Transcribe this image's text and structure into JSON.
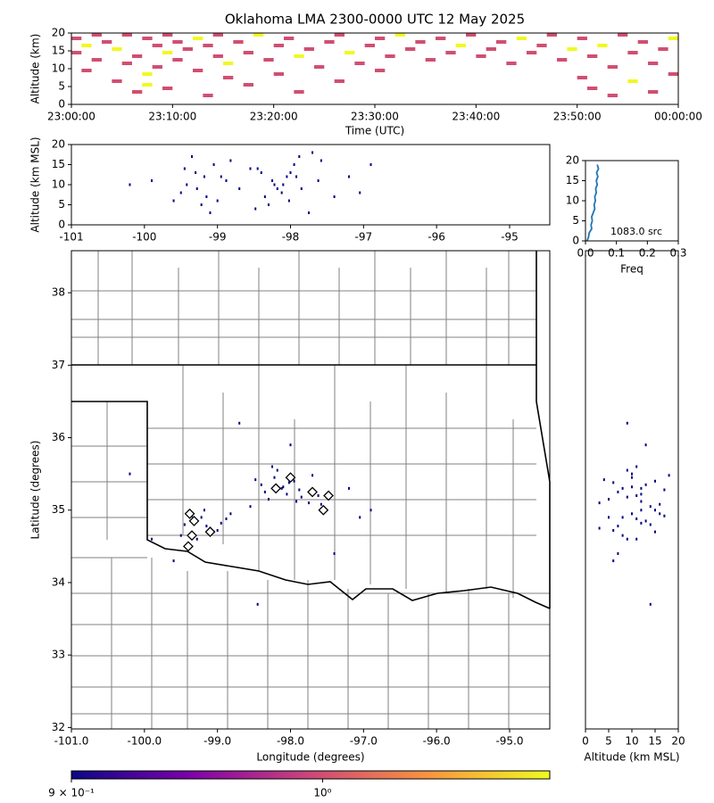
{
  "chart_data": [
    {
      "type": "heatmap",
      "title": "Oklahoma LMA 2300-0000 UTC 12 May 2025",
      "xlabel": "Time (UTC)",
      "ylabel": "Altitude (km)",
      "x": [
        "23:00:00",
        "23:00:00",
        "23:01:00",
        "23:01:00",
        "23:02:00",
        "23:02:00",
        "23:03:00",
        "23:04:00",
        "23:04:00",
        "23:05:00",
        "23:05:00",
        "23:06:00",
        "23:06:00",
        "23:07:00",
        "23:07:00",
        "23:07:00",
        "23:08:00",
        "23:08:00",
        "23:09:00",
        "23:09:00",
        "23:09:00",
        "23:10:00",
        "23:10:00",
        "23:11:00",
        "23:12:00",
        "23:12:00",
        "23:13:00",
        "23:13:00",
        "23:14:00",
        "23:14:00",
        "23:15:00",
        "23:15:00",
        "23:16:00",
        "23:17:00",
        "23:17:00",
        "23:18:00",
        "23:19:00",
        "23:20:00",
        "23:20:00",
        "23:21:00",
        "23:22:00",
        "23:22:00",
        "23:23:00",
        "23:24:00",
        "23:25:00",
        "23:26:00",
        "23:26:00",
        "23:27:00",
        "23:28:00",
        "23:29:00",
        "23:30:00",
        "23:30:00",
        "23:31:00",
        "23:32:00",
        "23:33:00",
        "23:34:00",
        "23:35:00",
        "23:36:00",
        "23:37:00",
        "23:38:00",
        "23:39:00",
        "23:40:00",
        "23:41:00",
        "23:42:00",
        "23:43:00",
        "23:44:00",
        "23:45:00",
        "23:46:00",
        "23:47:00",
        "23:48:00",
        "23:49:00",
        "23:50:00",
        "23:50:00",
        "23:51:00",
        "23:51:00",
        "23:52:00",
        "23:53:00",
        "23:53:00",
        "23:54:00",
        "23:55:00",
        "23:55:00",
        "23:56:00",
        "23:57:00",
        "23:57:00",
        "23:58:00",
        "23:59:00",
        "23:59:00"
      ],
      "y": [
        18,
        14,
        16,
        9,
        19,
        12,
        17,
        15,
        6,
        19,
        11,
        13,
        3,
        18,
        8,
        5,
        16,
        10,
        19,
        14,
        4,
        17,
        12,
        15,
        18,
        9,
        16,
        2,
        19,
        13,
        11,
        7,
        17,
        14,
        5,
        19,
        12,
        16,
        8,
        18,
        13,
        3,
        15,
        10,
        17,
        19,
        6,
        14,
        11,
        16,
        18,
        9,
        13,
        19,
        15,
        17,
        12,
        18,
        14,
        16,
        19,
        13,
        15,
        17,
        11,
        18,
        14,
        16,
        19,
        12,
        15,
        18,
        7,
        13,
        4,
        16,
        10,
        2,
        19,
        14,
        6,
        17,
        11,
        3,
        15,
        18,
        8
      ],
      "values": [
        1,
        1,
        2,
        1,
        1,
        1,
        1,
        2,
        1,
        1,
        1,
        1,
        1,
        1,
        2,
        2,
        1,
        1,
        1,
        2,
        1,
        1,
        1,
        1,
        2,
        1,
        1,
        1,
        1,
        1,
        2,
        1,
        1,
        1,
        1,
        2,
        1,
        1,
        1,
        1,
        2,
        1,
        1,
        1,
        1,
        1,
        1,
        2,
        1,
        1,
        1,
        1,
        1,
        2,
        1,
        1,
        1,
        1,
        1,
        2,
        1,
        1,
        1,
        1,
        1,
        2,
        1,
        1,
        1,
        1,
        2,
        1,
        1,
        1,
        1,
        2,
        1,
        1,
        1,
        1,
        2,
        1,
        1,
        1,
        1,
        2,
        1
      ],
      "xlim": [
        "23:00:00",
        "00:00:00"
      ],
      "xticks": [
        "23:00:00",
        "23:10:00",
        "23:20:00",
        "23:30:00",
        "23:40:00",
        "23:50:00",
        "00:00:00"
      ],
      "ylim": [
        0,
        20
      ],
      "yticks": [
        0,
        5,
        10,
        15,
        20
      ],
      "clim": [
        0.9,
        1.1
      ],
      "colormap": "plasma",
      "log_scale": true
    },
    {
      "type": "scatter",
      "ylabel": "Altitude (km MSL)",
      "color": "#000080",
      "x": [
        -98.12,
        -98.05,
        -97.95,
        -98.3,
        -98.22,
        -97.88,
        -97.75,
        -98.4,
        -98.18,
        -97.62,
        -98.55,
        -98.02,
        -97.7,
        -98.35,
        -97.92,
        -98.1,
        -98.48,
        -97.58,
        -98.25,
        -97.85,
        -99.3,
        -99.15,
        -99.42,
        -99.05,
        -99.22,
        -98.95,
        -99.5,
        -99.35,
        -99.1,
        -98.88,
        -99.28,
        -99.45,
        -99.0,
        -99.18,
        -98.82,
        -100.2,
        -97.2,
        -97.05,
        -99.9,
        -98.0,
        -96.9,
        -97.4,
        -98.7,
        -99.6,
        -98.45
      ],
      "y": [
        8,
        12,
        15,
        5,
        10,
        17,
        3,
        13,
        9,
        11,
        14,
        6,
        18,
        7,
        12,
        10,
        4,
        16,
        11,
        9,
        13,
        7,
        10,
        15,
        5,
        12,
        8,
        17,
        3,
        11,
        9,
        14,
        6,
        12,
        16,
        10,
        12,
        8,
        11,
        13,
        15,
        7,
        9,
        6,
        14
      ],
      "xlim": [
        -101,
        -94.45
      ],
      "xticks": [
        -101,
        -100,
        -99,
        -98,
        -97,
        -96,
        -95
      ],
      "ylim": [
        0,
        20
      ],
      "yticks": [
        0,
        5,
        10,
        15,
        20
      ]
    },
    {
      "type": "line",
      "xlabel": "Freq",
      "annotation": "1083.0 src",
      "color": "#1f77b4",
      "x": [
        0.005,
        0.01,
        0.012,
        0.02,
        0.018,
        0.022,
        0.02,
        0.025,
        0.03,
        0.028,
        0.032,
        0.03,
        0.035,
        0.033,
        0.038,
        0.035,
        0.04,
        0.036,
        0.042,
        0.038
      ],
      "y": [
        0,
        1,
        2,
        3,
        4,
        5,
        6,
        7,
        8,
        9,
        10,
        11,
        12,
        13,
        14,
        15,
        16,
        17,
        18,
        19
      ],
      "xlim": [
        0,
        0.3
      ],
      "xticks": [
        {
          "value": 0,
          "label": "0.0"
        },
        {
          "value": 0.1,
          "label": "0.1"
        },
        {
          "value": 0.2,
          "label": "0.2"
        },
        {
          "value": 0.3,
          "label": "0.3"
        }
      ],
      "ylim": [
        0,
        20
      ],
      "yticks": [
        0,
        5,
        10,
        15,
        20
      ]
    },
    {
      "type": "map",
      "xlabel": "Longitude (degrees)",
      "ylabel": "Latitude (degrees)",
      "color": "#000080",
      "x": [
        -98.12,
        -98.05,
        -97.95,
        -98.3,
        -98.22,
        -97.88,
        -97.75,
        -98.4,
        -98.18,
        -97.62,
        -98.55,
        -98.02,
        -97.7,
        -98.35,
        -97.92,
        -98.1,
        -98.48,
        -97.58,
        -98.25,
        -97.85,
        -99.3,
        -99.15,
        -99.42,
        -99.05,
        -99.22,
        -98.95,
        -99.5,
        -99.35,
        -99.1,
        -98.88,
        -99.28,
        -99.45,
        -99.0,
        -99.18,
        -98.82,
        -100.2,
        -97.2,
        -97.05,
        -99.9,
        -98.0,
        -96.9,
        -97.4,
        -98.7,
        -99.6,
        -98.45
      ],
      "y": [
        35.3,
        35.22,
        35.4,
        35.15,
        35.45,
        35.28,
        35.1,
        35.35,
        35.55,
        35.2,
        35.05,
        35.38,
        35.48,
        35.25,
        35.12,
        35.32,
        35.42,
        35.08,
        35.6,
        35.18,
        34.85,
        34.78,
        34.95,
        34.7,
        34.9,
        34.82,
        34.65,
        34.92,
        34.75,
        34.88,
        34.6,
        34.8,
        34.72,
        35.0,
        34.95,
        35.5,
        35.3,
        34.9,
        34.6,
        35.9,
        35.0,
        34.4,
        36.2,
        34.3,
        33.7
      ],
      "stations": {
        "lon": [
          -98.0,
          -98.2,
          -97.7,
          -97.48,
          -97.55,
          -99.38,
          -99.32,
          -99.1,
          -99.4,
          -99.35
        ],
        "lat": [
          35.45,
          35.3,
          35.25,
          35.2,
          35.0,
          34.95,
          34.85,
          34.7,
          34.5,
          34.65
        ]
      },
      "xlim": [
        -101,
        -94.45
      ],
      "xticks": [
        {
          "value": -101,
          "label": "-101.0"
        },
        {
          "value": -100,
          "label": "-100.0"
        },
        {
          "value": -99,
          "label": "-99.0"
        },
        {
          "value": -98,
          "label": "-98.0"
        },
        {
          "value": -97,
          "label": "-97.0"
        },
        {
          "value": -96,
          "label": "-96.0"
        },
        {
          "value": -95,
          "label": "-95.0"
        }
      ],
      "ylim": [
        31.98,
        38.58
      ],
      "yticks": [
        32,
        33,
        34,
        35,
        36,
        37,
        38
      ]
    },
    {
      "type": "scatter",
      "xlabel": "Altitude (km MSL)",
      "color": "#000080",
      "x": [
        8,
        12,
        15,
        5,
        10,
        17,
        3,
        13,
        9,
        11,
        14,
        6,
        18,
        7,
        12,
        10,
        4,
        16,
        11,
        9,
        13,
        7,
        10,
        15,
        5,
        12,
        8,
        17,
        3,
        11,
        9,
        14,
        6,
        12,
        16,
        10,
        12,
        8,
        11,
        13,
        15,
        7,
        9,
        6,
        14
      ],
      "y": [
        35.3,
        35.22,
        35.4,
        35.15,
        35.45,
        35.28,
        35.1,
        35.35,
        35.55,
        35.2,
        35.05,
        35.38,
        35.48,
        35.25,
        35.12,
        35.32,
        35.42,
        35.08,
        35.6,
        35.18,
        34.85,
        34.78,
        34.95,
        34.7,
        34.9,
        34.82,
        34.65,
        34.92,
        34.75,
        34.88,
        34.6,
        34.8,
        34.72,
        35.0,
        34.95,
        35.5,
        35.3,
        34.9,
        34.6,
        35.9,
        35.0,
        34.4,
        36.2,
        34.3,
        33.7
      ],
      "xlim": [
        0,
        20
      ],
      "xticks": [
        0,
        5,
        10,
        15,
        20
      ],
      "ylim": [
        31.98,
        38.58
      ]
    },
    {
      "type": "colorbar",
      "colormap": "plasma",
      "log_scale": true,
      "clim": [
        0.9,
        1.1
      ],
      "ticks": [
        {
          "value": 0.9,
          "label": "9 × 10⁻¹"
        },
        {
          "value": 1,
          "label": "10⁰"
        }
      ]
    }
  ]
}
